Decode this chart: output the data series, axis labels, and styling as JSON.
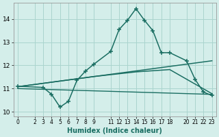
{
  "xlabel": "Humidex (Indice chaleur)",
  "ylabel": "",
  "background_color": "#d4eeea",
  "grid_color": "#aad4ce",
  "line_color": "#1a6e62",
  "xlim": [
    -0.5,
    23.5
  ],
  "ylim": [
    9.8,
    14.7
  ],
  "yticks": [
    10,
    11,
    12,
    13,
    14
  ],
  "xticks": [
    0,
    2,
    3,
    4,
    5,
    6,
    7,
    8,
    9,
    11,
    12,
    13,
    14,
    15,
    16,
    17,
    18,
    20,
    21,
    22,
    23
  ],
  "series": [
    {
      "x": [
        0,
        3,
        4,
        5,
        6,
        7,
        8,
        9,
        11,
        12,
        13,
        14,
        15,
        16,
        17,
        18,
        20,
        21,
        22,
        23
      ],
      "y": [
        11.1,
        11.05,
        10.75,
        10.2,
        10.45,
        11.35,
        11.75,
        12.05,
        12.6,
        13.55,
        13.95,
        14.45,
        13.95,
        13.5,
        12.55,
        12.55,
        12.2,
        11.4,
        10.85,
        10.7
      ],
      "marker": "+",
      "linewidth": 1.1,
      "markersize": 4.5
    },
    {
      "x": [
        0,
        23
      ],
      "y": [
        11.08,
        12.2
      ],
      "marker": null,
      "linewidth": 1.1,
      "markersize": 0
    },
    {
      "x": [
        0,
        9,
        14,
        18,
        23
      ],
      "y": [
        11.08,
        11.52,
        11.72,
        11.82,
        10.78
      ],
      "marker": null,
      "linewidth": 1.1,
      "markersize": 0
    },
    {
      "x": [
        0,
        23
      ],
      "y": [
        11.0,
        10.75
      ],
      "marker": null,
      "linewidth": 1.0,
      "markersize": 0
    }
  ]
}
